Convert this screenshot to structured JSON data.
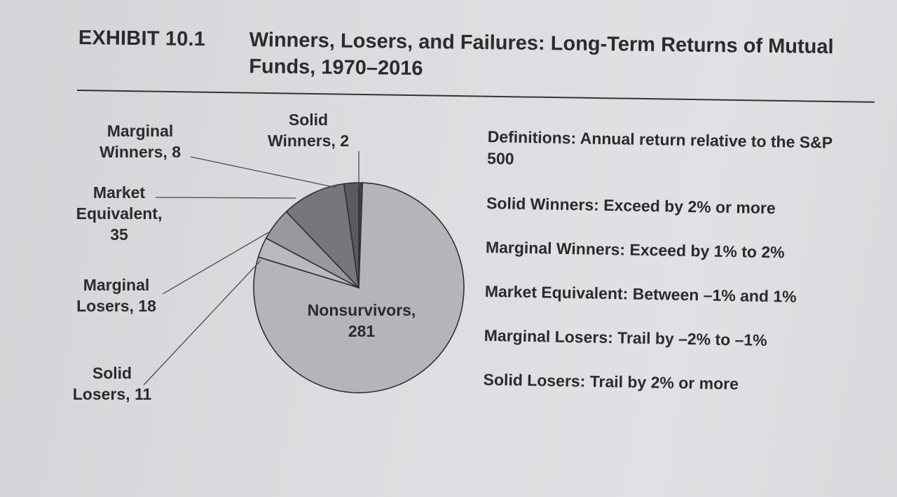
{
  "exhibit_label": "EXHIBIT 10.1",
  "definitions": {
    "heading": "Definitions: Annual return relative to the S&P 500",
    "items": [
      "Solid Winners: Exceed by 2% or more",
      "Marginal Winners: Exceed by 1% to 2%",
      "Market Equivalent: Between –1% and 1%",
      "Marginal Losers: Trail by –2% to –1%",
      "Solid Losers: Trail by 2% or more"
    ]
  },
  "chart_data": {
    "type": "pie",
    "title": "Winners, Losers, and Failures: Long-Term Returns of Mutual Funds, 1970–2016",
    "slices": [
      {
        "label_lines": [
          "Solid",
          "Winners, 2"
        ],
        "category": "Solid Winners",
        "value": 2,
        "color": "#3f4144"
      },
      {
        "label_lines": [
          "Nonsurvivors,",
          "281"
        ],
        "category": "Nonsurvivors",
        "value": 281,
        "color": "#b4b5b8"
      },
      {
        "label_lines": [
          "Solid",
          "Losers, 11"
        ],
        "category": "Solid Losers",
        "value": 11,
        "color": "#b9babd"
      },
      {
        "label_lines": [
          "Marginal",
          "Losers, 18"
        ],
        "category": "Marginal Losers",
        "value": 18,
        "color": "#98999c"
      },
      {
        "label_lines": [
          "Market",
          "Equivalent,",
          "35"
        ],
        "category": "Market Equivalent",
        "value": 35,
        "color": "#76777a"
      },
      {
        "label_lines": [
          "Marginal",
          "Winners, 8"
        ],
        "category": "Marginal Winners",
        "value": 8,
        "color": "#5a5b5e"
      }
    ],
    "total": 355,
    "legend": "none"
  }
}
